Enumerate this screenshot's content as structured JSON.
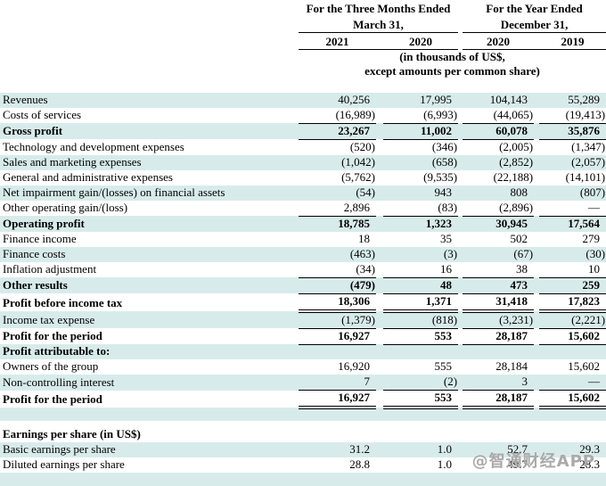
{
  "colors": {
    "stripe": "#d8ebeb",
    "watermark": "#aaaaaa",
    "rule": "#000000"
  },
  "watermark": {
    "text": "@智通财经APP"
  },
  "header": {
    "group1_line1": "For the Three Months Ended",
    "group1_line2": "March 31,",
    "group2_line1": "For the Year Ended",
    "group2_line2": "December 31,",
    "years": [
      "2021",
      "2020",
      "2020",
      "2019"
    ],
    "units_line1": "(in thousands of US$,",
    "units_line2": "except amounts per common share)"
  },
  "table": {
    "rows": [
      {
        "label": "Revenues",
        "values": [
          "40,256",
          "17,995",
          "104,143",
          "55,289"
        ],
        "stripe": true,
        "bold": false,
        "line": "none"
      },
      {
        "label": "Costs of services",
        "values": [
          "(16,989)",
          "(6,993)",
          "(44,065)",
          "(19,413)"
        ],
        "stripe": false,
        "bold": false,
        "line": "single"
      },
      {
        "label": "Gross profit",
        "values": [
          "23,267",
          "11,002",
          "60,078",
          "35,876"
        ],
        "stripe": true,
        "bold": true,
        "line": "single"
      },
      {
        "label": "Technology and development expenses",
        "values": [
          "(520)",
          "(346)",
          "(2,005)",
          "(1,347)"
        ],
        "stripe": false,
        "bold": false,
        "line": "none"
      },
      {
        "label": "Sales and marketing expenses",
        "values": [
          "(1,042)",
          "(658)",
          "(2,852)",
          "(2,057)"
        ],
        "stripe": true,
        "bold": false,
        "line": "none"
      },
      {
        "label": "General and administrative expenses",
        "values": [
          "(5,762)",
          "(9,535)",
          "(22,188)",
          "(14,101)"
        ],
        "stripe": false,
        "bold": false,
        "line": "none"
      },
      {
        "label": "Net impairment gain/(losses) on financial assets",
        "values": [
          "(54)",
          "943",
          "808",
          "(807)"
        ],
        "stripe": true,
        "bold": false,
        "line": "none"
      },
      {
        "label": "Other operating gain/(loss)",
        "values": [
          "2,896",
          "(83)",
          "(2,896)",
          "—"
        ],
        "stripe": false,
        "bold": false,
        "line": "single"
      },
      {
        "label": "Operating profit",
        "values": [
          "18,785",
          "1,323",
          "30,945",
          "17,564"
        ],
        "stripe": true,
        "bold": true,
        "line": "none"
      },
      {
        "label": "Finance income",
        "values": [
          "18",
          "35",
          "502",
          "279"
        ],
        "stripe": false,
        "bold": false,
        "line": "none"
      },
      {
        "label": "Finance costs",
        "values": [
          "(463)",
          "(3)",
          "(67)",
          "(30)"
        ],
        "stripe": true,
        "bold": false,
        "line": "none"
      },
      {
        "label": "Inflation adjustment",
        "values": [
          "(34)",
          "16",
          "38",
          "10"
        ],
        "stripe": false,
        "bold": false,
        "line": "single"
      },
      {
        "label": "Other results",
        "values": [
          "(479)",
          "48",
          "473",
          "259"
        ],
        "stripe": true,
        "bold": true,
        "line": "single"
      },
      {
        "label": "Profit before income tax",
        "values": [
          "18,306",
          "1,371",
          "31,418",
          "17,823"
        ],
        "stripe": false,
        "bold": true,
        "line": "double"
      },
      {
        "label": "Income tax expense",
        "values": [
          "(1,379)",
          "(818)",
          "(3,231)",
          "(2,221)"
        ],
        "stripe": true,
        "bold": false,
        "line": "single"
      },
      {
        "label": "Profit for the period",
        "values": [
          "16,927",
          "553",
          "28,187",
          "15,602"
        ],
        "stripe": false,
        "bold": true,
        "line": "single"
      },
      {
        "label": "Profit attributable to:",
        "values": [
          "",
          "",
          "",
          ""
        ],
        "stripe": true,
        "bold": true,
        "line": "none"
      },
      {
        "label": "Owners of the group",
        "values": [
          "16,920",
          "555",
          "28,184",
          "15,602"
        ],
        "stripe": false,
        "bold": false,
        "line": "none"
      },
      {
        "label": "Non-controlling interest",
        "values": [
          "7",
          "(2)",
          "3",
          "—"
        ],
        "stripe": true,
        "bold": false,
        "line": "single"
      },
      {
        "label": "Profit for the period",
        "values": [
          "16,927",
          "553",
          "28,187",
          "15,602"
        ],
        "stripe": false,
        "bold": true,
        "line": "double"
      },
      {
        "label": "",
        "values": [
          "",
          "",
          "",
          ""
        ],
        "stripe": true,
        "bold": false,
        "line": "none",
        "height": 15
      },
      {
        "label": "Earnings per share (in US$)",
        "values": [
          "",
          "",
          "",
          ""
        ],
        "stripe": false,
        "bold": true,
        "line": "none",
        "height": 24
      },
      {
        "label": "Basic earnings per share",
        "values": [
          "31.2",
          "1.0",
          "52.7",
          "29.3"
        ],
        "stripe": true,
        "bold": false,
        "line": "none"
      },
      {
        "label": "Diluted earnings per share",
        "values": [
          "28.8",
          "1.0",
          "49.7",
          "28.3"
        ],
        "stripe": false,
        "bold": false,
        "line": "none"
      },
      {
        "label": "",
        "values": [
          "",
          "",
          "",
          ""
        ],
        "stripe": true,
        "bold": false,
        "line": "none",
        "height": 15
      }
    ]
  }
}
